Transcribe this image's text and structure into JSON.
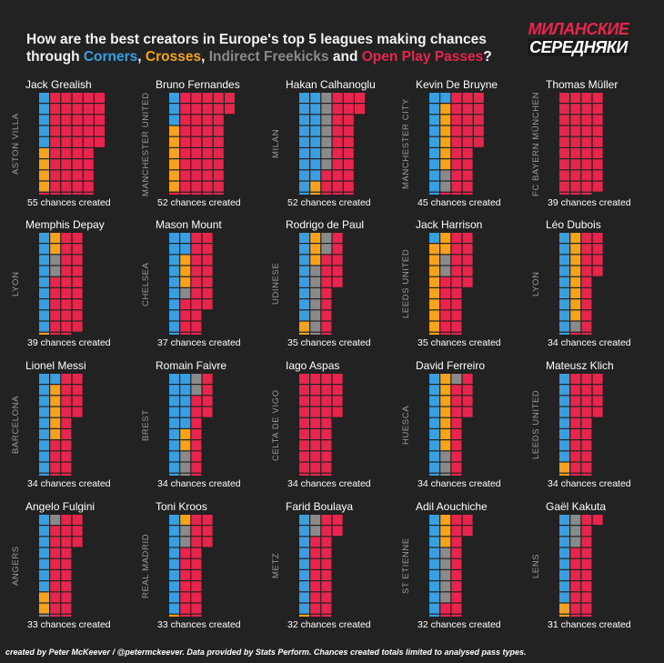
{
  "title": {
    "part1": "How are the best creators in Europe's top 5 leagues making chances",
    "through": "through ",
    "corners": "Corners",
    "sep1": ", ",
    "crosses": "Crosses",
    "sep2": ", ",
    "freekicks": "Indirect Freekicks",
    "and": " and ",
    "passes": "Open Play Passes",
    "qmark": "?"
  },
  "logo": {
    "line1": "МИЛАНСКИЕ",
    "line2": "СЕРЕДНЯКИ"
  },
  "colors": {
    "corners": "#3a9fe0",
    "crosses": "#f5a21e",
    "indirect_freekicks": "#8a8a8a",
    "open_play_passes": "#e8254c"
  },
  "chart_data": {
    "type": "waffle",
    "title": "How are the best creators in Europe's top 5 leagues making chances through Corners, Crosses, Indirect Freekicks and Open Play Passes?",
    "categories": [
      "Corners",
      "Crosses",
      "Indirect Freekicks",
      "Open Play Passes"
    ],
    "unit": "1 square = 1 chance created",
    "players": [
      {
        "name": "Jack Grealish",
        "team": "ASTON VILLA",
        "total": 55,
        "total_label": "55 chances created",
        "counts": [
          5,
          4,
          0,
          46
        ]
      },
      {
        "name": "Bruno Fernandes",
        "team": "MANCHESTER UNITED",
        "total": 52,
        "total_label": "52 chances created",
        "counts": [
          3,
          6,
          0,
          43
        ]
      },
      {
        "name": "Hakan Calhanoglu",
        "team": "MILAN",
        "total": 52,
        "total_label": "52 chances created",
        "counts": [
          18,
          2,
          7,
          25
        ]
      },
      {
        "name": "Kevin De Bruyne",
        "team": "MANCHESTER CITY",
        "total": 45,
        "total_label": "45 chances created",
        "counts": [
          11,
          6,
          2,
          26
        ]
      },
      {
        "name": "Thomas Müller",
        "team": "FC BAYERN MÜNCHEN",
        "total": 39,
        "total_label": "39 chances created",
        "counts": [
          0,
          0,
          0,
          39
        ]
      },
      {
        "name": "Memphis Depay",
        "team": "LYON",
        "total": 39,
        "total_label": "39 chances created",
        "counts": [
          9,
          3,
          2,
          25
        ]
      },
      {
        "name": "Mason Mount",
        "team": "CHELSEA",
        "total": 37,
        "total_label": "37 chances created",
        "counts": [
          12,
          3,
          1,
          21
        ]
      },
      {
        "name": "Rodrigo de Paul",
        "team": "UDINESE",
        "total": 35,
        "total_label": "35 chances created",
        "counts": [
          8,
          5,
          9,
          13
        ]
      },
      {
        "name": "Jack Harrison",
        "team": "LEEDS UNITED",
        "total": 35,
        "total_label": "35 chances created",
        "counts": [
          1,
          11,
          2,
          21
        ]
      },
      {
        "name": "Léo Dubois",
        "team": "LYON",
        "total": 34,
        "total_label": "34 chances created",
        "counts": [
          10,
          8,
          1,
          15
        ]
      },
      {
        "name": "Lionel Messi",
        "team": "BARCELONA",
        "total": 34,
        "total_label": "34 chances created",
        "counts": [
          11,
          5,
          0,
          18
        ]
      },
      {
        "name": "Romain Faivre",
        "team": "BREST",
        "total": 34,
        "total_label": "34 chances created",
        "counts": [
          15,
          2,
          5,
          12
        ]
      },
      {
        "name": "Iago Aspas",
        "team": "CELTA DE VIGO",
        "total": 34,
        "total_label": "34 chances created",
        "counts": [
          0,
          0,
          0,
          34
        ]
      },
      {
        "name": "David Ferreiro",
        "team": "HUESCA",
        "total": 34,
        "total_label": "34 chances created",
        "counts": [
          10,
          7,
          4,
          13
        ]
      },
      {
        "name": "Mateusz Klich",
        "team": "LEEDS UNITED",
        "total": 34,
        "total_label": "34 chances created",
        "counts": [
          8,
          2,
          0,
          24
        ]
      },
      {
        "name": "Angelo Fulgini",
        "team": "ANGERS",
        "total": 33,
        "total_label": "33 chances created",
        "counts": [
          7,
          2,
          2,
          22
        ]
      },
      {
        "name": "Toni Kroos",
        "team": "REAL MADRID",
        "total": 33,
        "total_label": "33 chances created",
        "counts": [
          9,
          2,
          2,
          20
        ]
      },
      {
        "name": "Farid Boulaya",
        "team": "METZ",
        "total": 32,
        "total_label": "32 chances created",
        "counts": [
          9,
          1,
          2,
          20
        ]
      },
      {
        "name": "Adil Aouchiche",
        "team": "ST ETIENNE",
        "total": 32,
        "total_label": "32 chances created",
        "counts": [
          10,
          3,
          5,
          14
        ]
      },
      {
        "name": "Gaël Kakuta",
        "team": "LENS",
        "total": 31,
        "total_label": "31 chances created",
        "counts": [
          8,
          2,
          3,
          18
        ]
      }
    ]
  },
  "footer": "created by Peter McKeever / @petermckeever. Data provided by Stats Perform. Chances created totals limited to analysed pass types."
}
